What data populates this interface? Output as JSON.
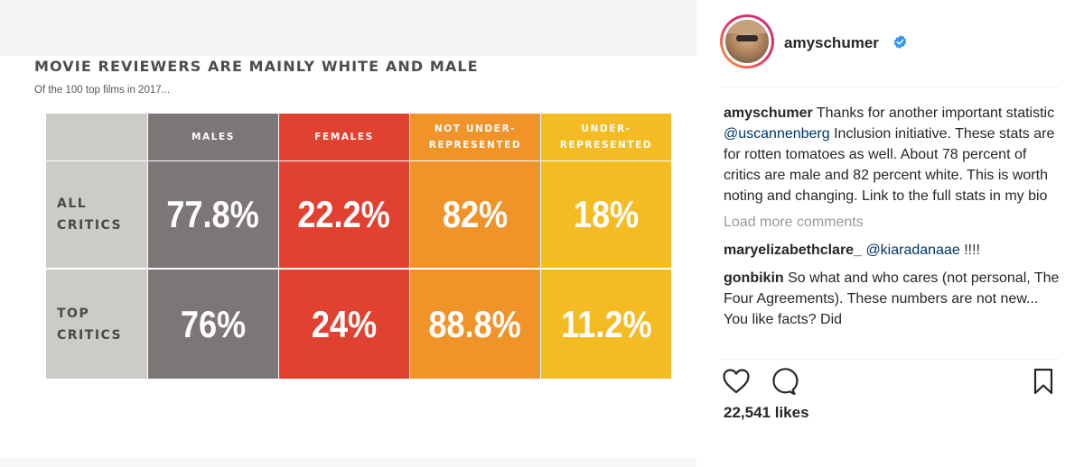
{
  "infographic": {
    "title": "MOVIE REVIEWERS ARE MAINLY WHITE AND MALE",
    "subtitle": "Of the 100 top films in 2017...",
    "columns": [
      "MALES",
      "FEMALES",
      "NOT UNDER- REPRESENTED",
      "UNDER- REPRESENTED"
    ],
    "column_colors": [
      "#7c7776",
      "#e14130",
      "#f09329",
      "#f5bb22"
    ],
    "rows": [
      {
        "label": "ALL CRITICS",
        "values": [
          "77.8%",
          "22.2%",
          "82%",
          "18%"
        ]
      },
      {
        "label": "TOP CRITICS",
        "values": [
          "76%",
          "24%",
          "88.8%",
          "11.2%"
        ]
      }
    ],
    "label_column_color": "#cdcbc8"
  },
  "post": {
    "author": "amyschumer",
    "verified_icon": "verified-badge-icon",
    "caption": {
      "username": "amyschumer",
      "text_before_mention": " Thanks for another important statistic ",
      "mention": "@uscannenberg",
      "text_after_mention": " Inclusion initiative. These stats are for rotten tomatoes as well. About 78 percent of critics are male and 82 percent white. This is worth noting and changing. Link to the full stats in my bio"
    },
    "load_more_label": "Load more comments",
    "comments": [
      {
        "username": "maryelizabethclare_",
        "mention": "@kiaradanaae",
        "text": " !!!!"
      },
      {
        "username": "gonbikin",
        "text": " So what and who cares (not personal, The Four Agreements). These numbers are not new... You like facts? Did"
      }
    ],
    "actions": [
      "heart-icon",
      "comment-icon",
      "bookmark-icon"
    ],
    "likes": "22,541 likes"
  }
}
